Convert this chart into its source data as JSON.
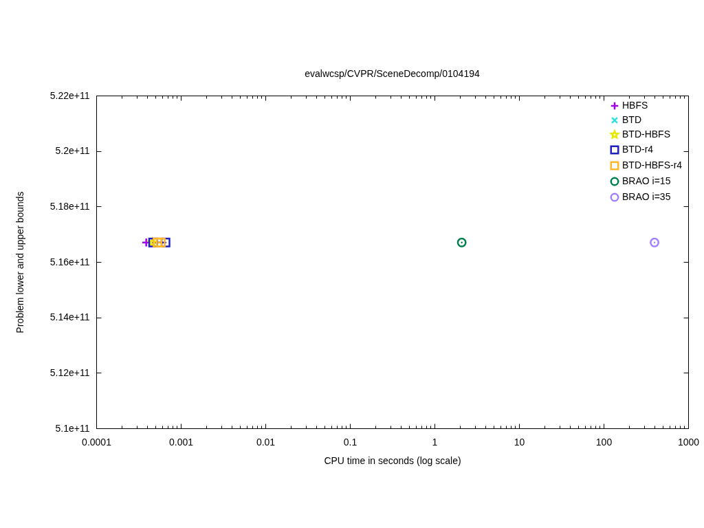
{
  "chart_data": {
    "type": "line",
    "title": "evalwcsp/CVPR/SceneDecomp/0104194",
    "xlabel": "CPU time in seconds (log scale)",
    "ylabel": "Problem lower and upper bounds",
    "log": "x",
    "legend": "top right",
    "xlim": [
      0.0001,
      1000
    ],
    "xticks": [
      0.0001,
      {
        "value": 0.0002,
        "label": null
      },
      {
        "value": 0.0003,
        "label": null
      },
      {
        "value": 0.0004,
        "label": null
      },
      {
        "value": 0.0005,
        "label": null
      },
      {
        "value": 0.0006,
        "label": null
      },
      {
        "value": 0.0007,
        "label": null
      },
      {
        "value": 0.0008,
        "label": null
      },
      {
        "value": 0.0009,
        "label": null
      },
      0.001,
      {
        "value": 0.002,
        "label": null
      },
      {
        "value": 0.003,
        "label": null
      },
      {
        "value": 0.004,
        "label": null
      },
      {
        "value": 0.005,
        "label": null
      },
      {
        "value": 0.006,
        "label": null
      },
      {
        "value": 0.007,
        "label": null
      },
      {
        "value": 0.008,
        "label": null
      },
      {
        "value": 0.009,
        "label": null
      },
      0.01,
      {
        "value": 0.02,
        "label": null
      },
      {
        "value": 0.03,
        "label": null
      },
      {
        "value": 0.04,
        "label": null
      },
      {
        "value": 0.05,
        "label": null
      },
      {
        "value": 0.06,
        "label": null
      },
      {
        "value": 0.07,
        "label": null
      },
      {
        "value": 0.08,
        "label": null
      },
      {
        "value": 0.09,
        "label": null
      },
      0.1,
      {
        "value": 0.2,
        "label": null
      },
      {
        "value": 0.3,
        "label": null
      },
      {
        "value": 0.4,
        "label": null
      },
      {
        "value": 0.5,
        "label": null
      },
      {
        "value": 0.6,
        "label": null
      },
      {
        "value": 0.7,
        "label": null
      },
      {
        "value": 0.8,
        "label": null
      },
      {
        "value": 0.9,
        "label": null
      },
      1,
      {
        "value": 2,
        "label": null
      },
      {
        "value": 3,
        "label": null
      },
      {
        "value": 4,
        "label": null
      },
      {
        "value": 5,
        "label": null
      },
      {
        "value": 6,
        "label": null
      },
      {
        "value": 7,
        "label": null
      },
      {
        "value": 8,
        "label": null
      },
      {
        "value": 9,
        "label": null
      },
      10,
      {
        "value": 20,
        "label": null
      },
      {
        "value": 30,
        "label": null
      },
      {
        "value": 40,
        "label": null
      },
      {
        "value": 50,
        "label": null
      },
      {
        "value": 60,
        "label": null
      },
      {
        "value": 70,
        "label": null
      },
      {
        "value": 80,
        "label": null
      },
      {
        "value": 90,
        "label": null
      },
      100,
      {
        "value": 200,
        "label": null
      },
      {
        "value": 300,
        "label": null
      },
      {
        "value": 400,
        "label": null
      },
      {
        "value": 500,
        "label": null
      },
      {
        "value": 600,
        "label": null
      },
      {
        "value": 700,
        "label": null
      },
      {
        "value": 800,
        "label": null
      },
      {
        "value": 900,
        "label": null
      },
      1000
    ],
    "ylim": [
      510000000000,
      522000000000
    ],
    "yticks": [
      {
        "value": 510000000000,
        "label": "5.1e+11"
      },
      {
        "value": 512000000000,
        "label": "5.12e+11"
      },
      {
        "value": 514000000000,
        "label": "5.14e+11"
      },
      {
        "value": 516000000000,
        "label": "5.16e+11"
      },
      {
        "value": 518000000000,
        "label": "5.18e+11"
      },
      {
        "value": 520000000000,
        "label": "5.2e+11"
      },
      {
        "value": 522000000000,
        "label": "5.22e+11"
      }
    ],
    "series": [
      {
        "name": "HBFS",
        "color": "#a000f0",
        "marker": "cross",
        "x": [
          0.00039
        ],
        "values": [
          516700000000
        ]
      },
      {
        "name": "BTD",
        "color": "#30e0e0",
        "marker": "x",
        "x": [
          null
        ],
        "values": [
          null
        ]
      },
      {
        "name": "BTD-HBFS",
        "color": "#e8e800",
        "marker": "star",
        "x": [
          0.00046
        ],
        "values": [
          516700000000
        ]
      },
      {
        "name": "BTD-r4",
        "color": "#2020c0",
        "marker": "square",
        "x": [
          0.00047,
          0.00066
        ],
        "values": [
          516700000000,
          516700000000
        ]
      },
      {
        "name": "BTD-HBFS-r4",
        "color": "#ffb82a",
        "marker": "square",
        "x": [
          0.00053,
          0.00058
        ],
        "values": [
          516700000000,
          516700000000
        ]
      },
      {
        "name": "BRAO i=15",
        "color": "#00804a",
        "marker": "circle",
        "x": [
          2.1
        ],
        "values": [
          516700000000
        ]
      },
      {
        "name": "BRAO i=35",
        "color": "#a080ff",
        "marker": "circle",
        "x": [
          400
        ],
        "values": [
          516700000000
        ]
      }
    ]
  }
}
